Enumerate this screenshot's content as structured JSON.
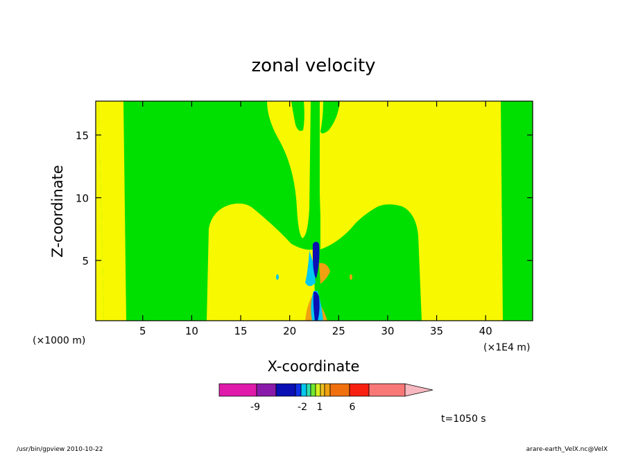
{
  "chart_data": {
    "type": "contour",
    "title": "zonal velocity",
    "xlabel": "X-coordinate",
    "ylabel": "Z-coordinate",
    "x_unit_label": "(×1E4 m)",
    "y_unit_label": "(×1000 m)",
    "xlim": [
      0.2,
      44.8
    ],
    "ylim": [
      0.2,
      17.7
    ],
    "x_ticks": [
      "5",
      "10",
      "15",
      "20",
      "25",
      "30",
      "35",
      "40"
    ],
    "x_tick_values": [
      5,
      10,
      15,
      20,
      25,
      30,
      35,
      40
    ],
    "y_ticks": [
      "5",
      "10",
      "15"
    ],
    "y_tick_values": [
      5,
      10,
      15
    ],
    "time_label": "t=1050 s",
    "colorbar": {
      "colors": [
        "#e01aaa",
        "#8a1aaa",
        "#0a10b4",
        "#1030e8",
        "#00c8f0",
        "#30e0b0",
        "#70e830",
        "#d8f020",
        "#f0c020",
        "#f0a010",
        "#f07010",
        "#f82010",
        "#f87878",
        "#f8b8c0"
      ],
      "tick_labels": [
        "-9",
        "-2",
        "1",
        "6"
      ]
    },
    "colors": {
      "green": "#00e000",
      "yellow": "#f8f800",
      "cyan": "#00c8f0",
      "blue": "#0a10b4",
      "orange": "#f0a010"
    }
  },
  "footer": {
    "left": "/usr/bin/gpview   2010-10-22",
    "right": "arare-earth_VelX.nc@VelX"
  }
}
